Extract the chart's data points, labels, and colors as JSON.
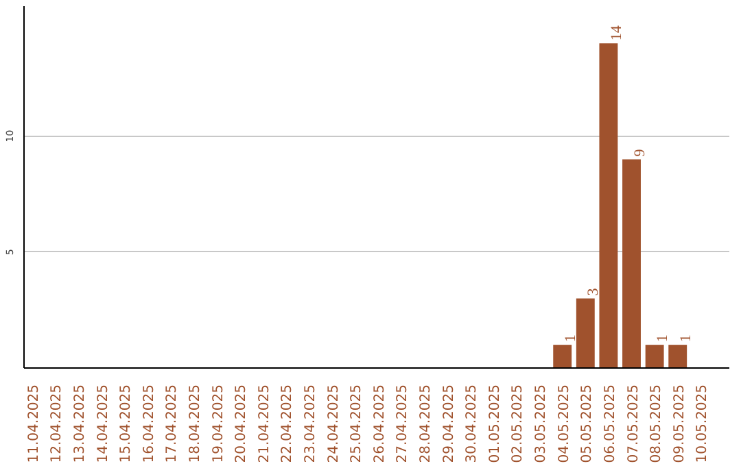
{
  "chart_data": {
    "type": "bar",
    "categories": [
      "11.04.2025",
      "12.04.2025",
      "13.04.2025",
      "14.04.2025",
      "15.04.2025",
      "16.04.2025",
      "17.04.2025",
      "18.04.2025",
      "19.04.2025",
      "20.04.2025",
      "21.04.2025",
      "22.04.2025",
      "23.04.2025",
      "24.04.2025",
      "25.04.2025",
      "26.04.2025",
      "27.04.2025",
      "28.04.2025",
      "29.04.2025",
      "30.04.2025",
      "01.05.2025",
      "02.05.2025",
      "03.05.2025",
      "04.05.2025",
      "05.05.2025",
      "06.05.2025",
      "07.05.2025",
      "08.05.2025",
      "09.05.2025",
      "10.05.2025"
    ],
    "values": [
      0,
      0,
      0,
      0,
      0,
      0,
      0,
      0,
      0,
      0,
      0,
      0,
      0,
      0,
      0,
      0,
      0,
      0,
      0,
      0,
      0,
      0,
      0,
      1,
      3,
      14,
      9,
      1,
      1,
      0
    ],
    "value_labels": [
      null,
      null,
      null,
      null,
      null,
      null,
      null,
      null,
      null,
      null,
      null,
      null,
      null,
      null,
      null,
      null,
      null,
      null,
      null,
      null,
      null,
      null,
      null,
      "1",
      "3",
      "14",
      "9",
      "1",
      "1",
      null
    ],
    "color": "#a0522d",
    "ylim": [
      0,
      15.6
    ],
    "yticks": [
      5,
      10
    ],
    "grid": "y"
  }
}
